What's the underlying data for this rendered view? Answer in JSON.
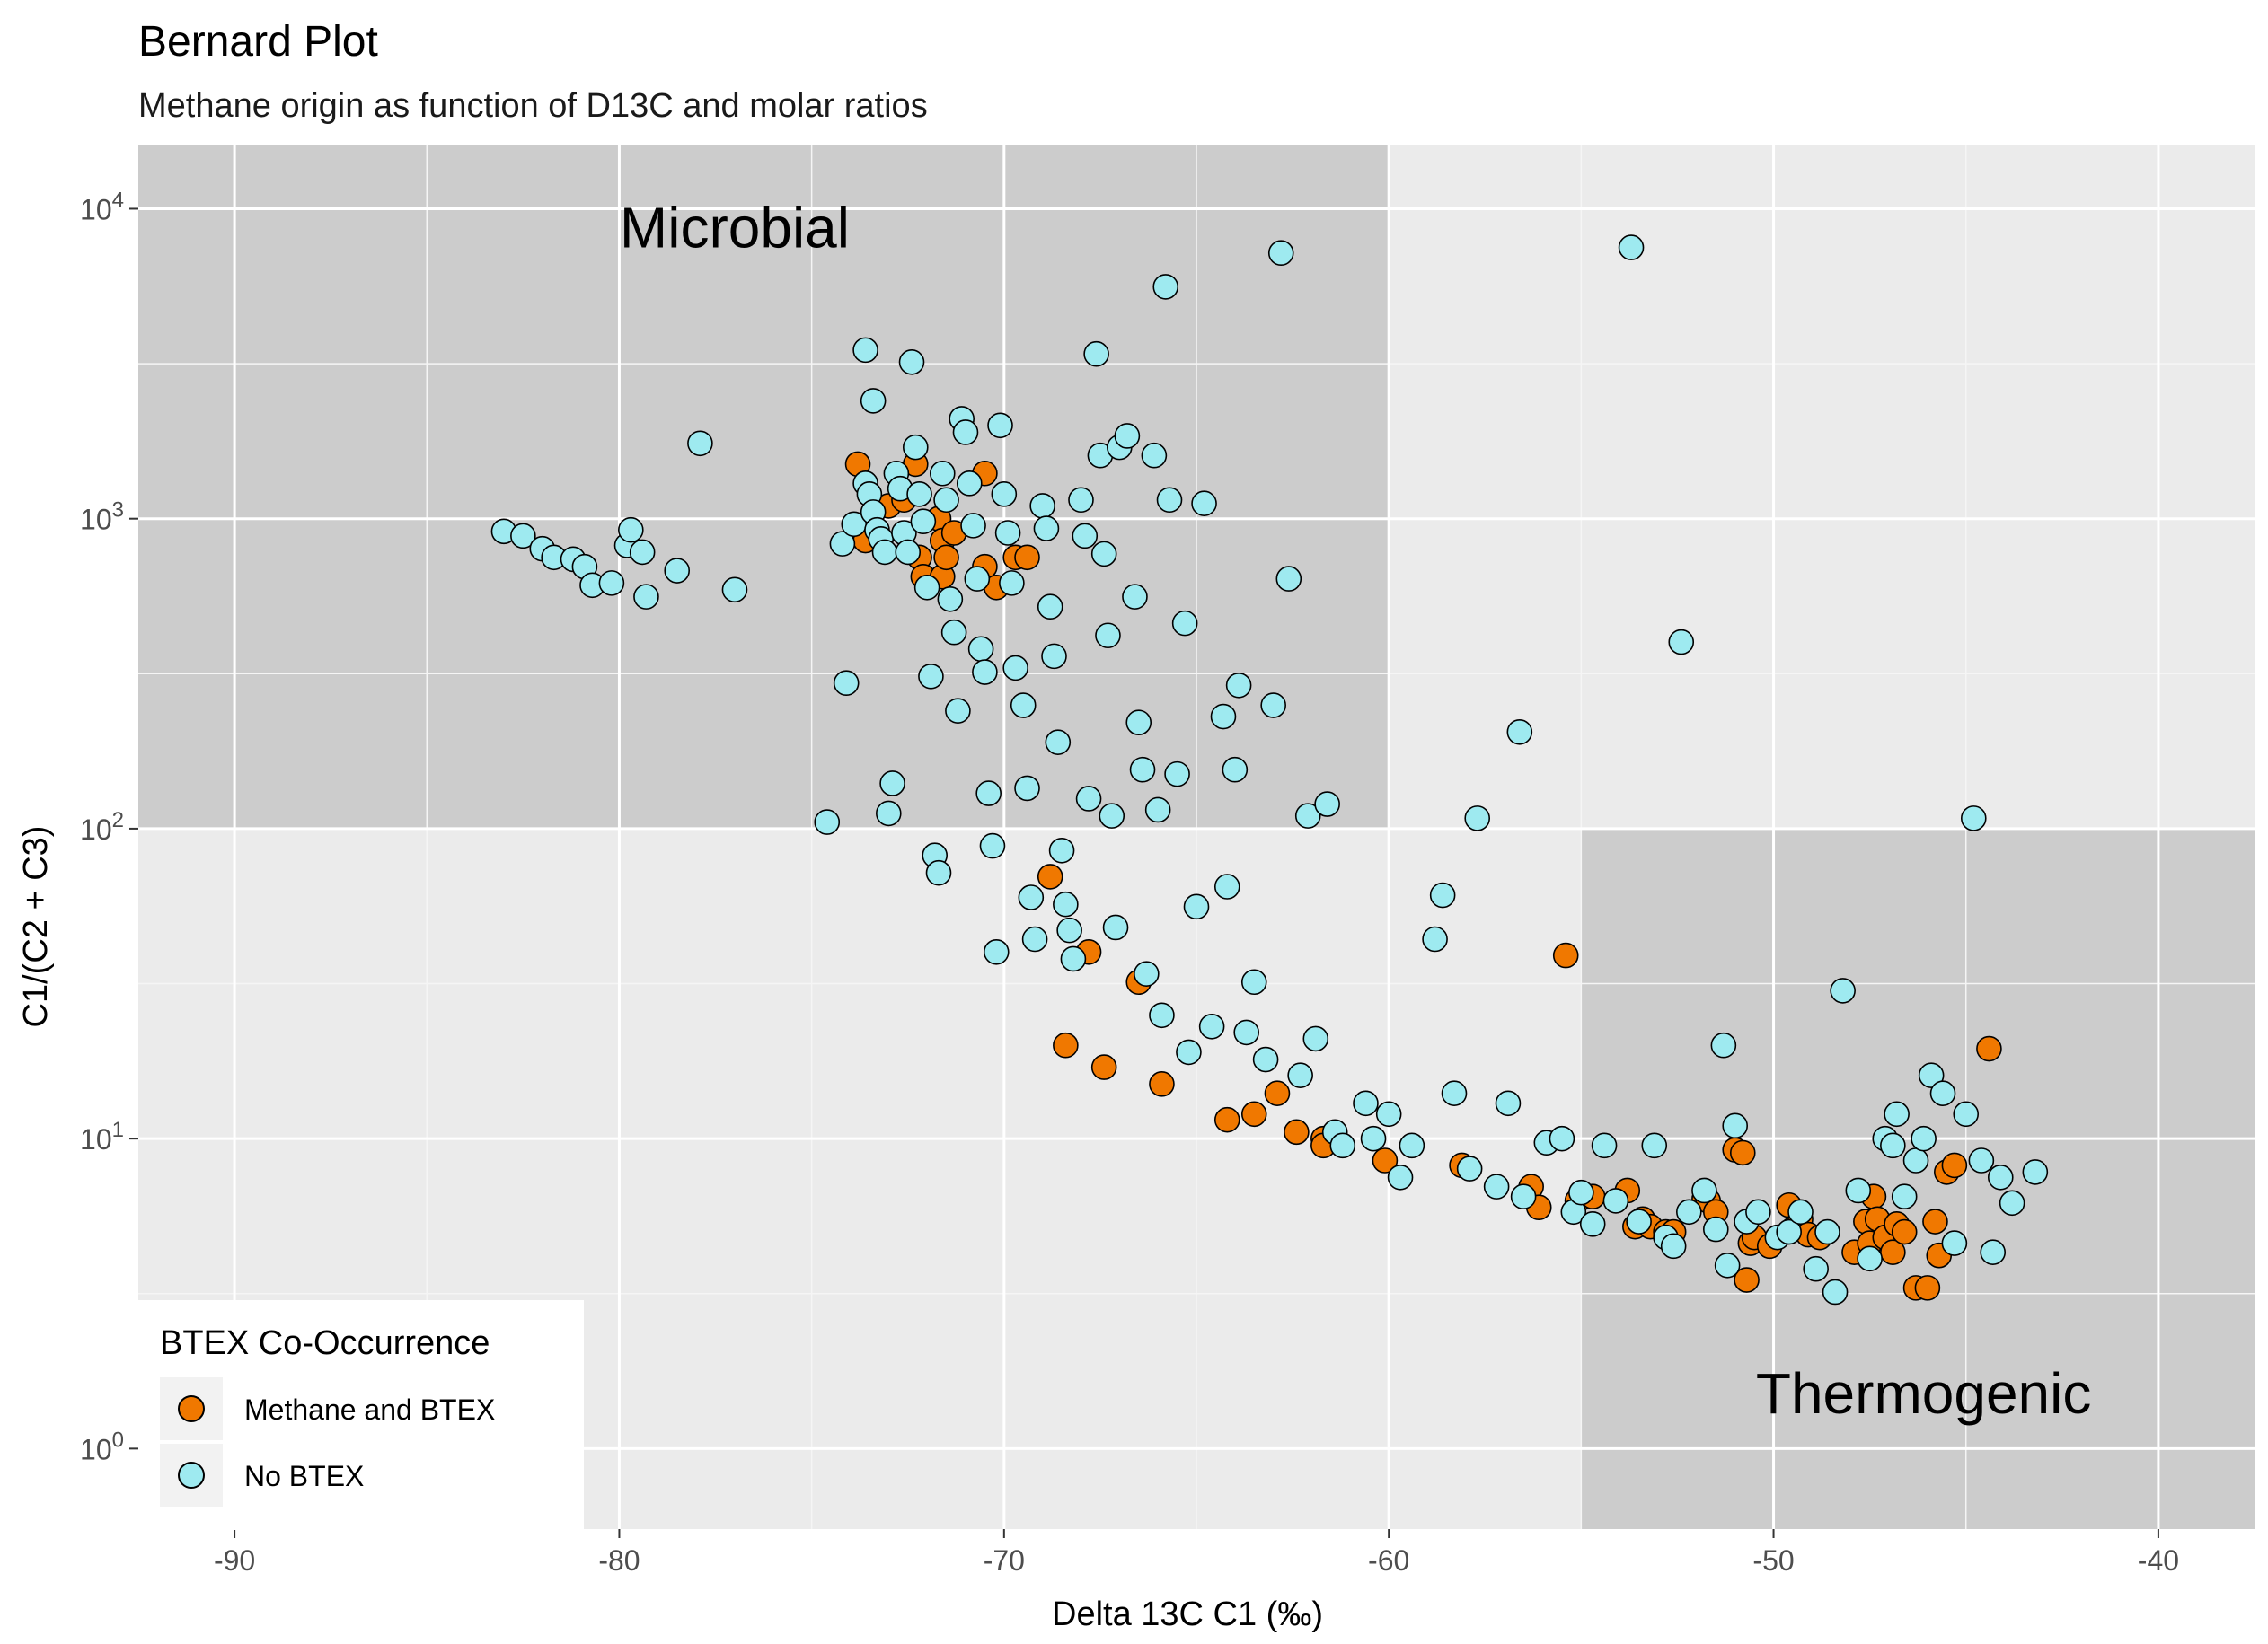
{
  "chart_data": {
    "type": "scatter",
    "title": "Bernard Plot",
    "subtitle": "Methane origin as function of D13C and molar ratios",
    "xlabel": "Delta 13C C1 (‰)",
    "ylabel": "C1/(C2 + C3)",
    "xlim": [
      -92.5,
      -37.5
    ],
    "ylim": [
      0.55,
      16000
    ],
    "y_scale": "log10",
    "x_ticks": [
      -90,
      -80,
      -70,
      -60,
      -50,
      -40
    ],
    "x_tick_labels": [
      "-90",
      "-80",
      "-70",
      "-60",
      "-50",
      "-40"
    ],
    "y_ticks": [
      1,
      10,
      100,
      1000,
      10000
    ],
    "y_tick_labels": [
      {
        "base": "10",
        "exp": "0"
      },
      {
        "base": "10",
        "exp": "1"
      },
      {
        "base": "10",
        "exp": "2"
      },
      {
        "base": "10",
        "exp": "3"
      },
      {
        "base": "10",
        "exp": "4"
      }
    ],
    "grid": true,
    "regions": [
      {
        "label": "Microbial",
        "x": [
          -92.5,
          -60
        ],
        "y": [
          100,
          16000
        ],
        "color": "#cccccc"
      },
      {
        "label": "Thermogenic",
        "x": [
          -55,
          -37.5
        ],
        "y": [
          0.55,
          100
        ],
        "color": "#cccccc"
      }
    ],
    "legend": {
      "title": "BTEX Co-Occurrence",
      "position": "bottom-left"
    },
    "series": [
      {
        "name": "Methane and BTEX",
        "color": "#f07800",
        "points": [
          [
            -73.8,
            1500
          ],
          [
            -73.7,
            950
          ],
          [
            -73.6,
            850
          ],
          [
            -73.0,
            1100
          ],
          [
            -72.6,
            1150
          ],
          [
            -72.3,
            1500
          ],
          [
            -72.2,
            750
          ],
          [
            -72.1,
            650
          ],
          [
            -71.7,
            1000
          ],
          [
            -71.6,
            850
          ],
          [
            -71.6,
            650
          ],
          [
            -71.3,
            900
          ],
          [
            -71.5,
            750
          ],
          [
            -70.5,
            1400
          ],
          [
            -70.5,
            700
          ],
          [
            -70.2,
            600
          ],
          [
            -69.7,
            750
          ],
          [
            -69.4,
            750
          ],
          [
            -68.8,
            70
          ],
          [
            -68.4,
            20
          ],
          [
            -67.8,
            40
          ],
          [
            -67.4,
            17
          ],
          [
            -66.5,
            32
          ],
          [
            -65.9,
            15
          ],
          [
            -64.2,
            11.5
          ],
          [
            -63.5,
            12
          ],
          [
            -62.9,
            14
          ],
          [
            -62.4,
            10.5
          ],
          [
            -61.7,
            10
          ],
          [
            -61.7,
            9.5
          ],
          [
            -60.1,
            8.5
          ],
          [
            -58.1,
            8.2
          ],
          [
            -56.3,
            7
          ],
          [
            -56.1,
            6
          ],
          [
            -55.4,
            39
          ],
          [
            -55.1,
            6.3
          ],
          [
            -54.7,
            6.5
          ],
          [
            -53.8,
            6.8
          ],
          [
            -53.6,
            5.2
          ],
          [
            -53.4,
            5.5
          ],
          [
            -53.2,
            5.2
          ],
          [
            -52.8,
            5.0
          ],
          [
            -52.6,
            5.0
          ],
          [
            -51.8,
            6.4
          ],
          [
            -51.7,
            6.3
          ],
          [
            -51.5,
            5.8
          ],
          [
            -51.0,
            9.2
          ],
          [
            -50.8,
            9.0
          ],
          [
            -50.7,
            3.5
          ],
          [
            -50.6,
            4.6
          ],
          [
            -50.5,
            4.8
          ],
          [
            -50.1,
            4.5
          ],
          [
            -49.6,
            6.1
          ],
          [
            -49.5,
            5.1
          ],
          [
            -49.3,
            5.5
          ],
          [
            -49.1,
            4.9
          ],
          [
            -48.8,
            4.8
          ],
          [
            -47.9,
            4.3
          ],
          [
            -47.6,
            5.4
          ],
          [
            -47.5,
            4.6
          ],
          [
            -47.4,
            6.5
          ],
          [
            -47.3,
            5.5
          ],
          [
            -47.1,
            4.8
          ],
          [
            -46.9,
            4.3
          ],
          [
            -46.8,
            5.3
          ],
          [
            -46.6,
            5.0
          ],
          [
            -46.3,
            3.3
          ],
          [
            -46.0,
            3.3
          ],
          [
            -45.8,
            5.4
          ],
          [
            -45.7,
            4.2
          ],
          [
            -45.5,
            7.8
          ],
          [
            -45.3,
            8.2
          ],
          [
            -44.4,
            19.5
          ]
        ]
      },
      {
        "name": "No BTEX",
        "color": "#9eeaf0",
        "points": [
          [
            -83.0,
            910
          ],
          [
            -82.5,
            880
          ],
          [
            -82.0,
            800
          ],
          [
            -81.7,
            750
          ],
          [
            -81.2,
            740
          ],
          [
            -80.9,
            700
          ],
          [
            -80.7,
            610
          ],
          [
            -80.2,
            620
          ],
          [
            -79.8,
            820
          ],
          [
            -79.7,
            920
          ],
          [
            -79.4,
            780
          ],
          [
            -79.3,
            560
          ],
          [
            -78.5,
            680
          ],
          [
            -77.9,
            1750
          ],
          [
            -77.0,
            590
          ],
          [
            -74.6,
            105
          ],
          [
            -74.1,
            295
          ],
          [
            -74.2,
            830
          ],
          [
            -73.9,
            960
          ],
          [
            -73.6,
            3500
          ],
          [
            -73.4,
            2400
          ],
          [
            -73.6,
            1300
          ],
          [
            -73.5,
            1200
          ],
          [
            -73.4,
            1050
          ],
          [
            -73.3,
            920
          ],
          [
            -73.2,
            860
          ],
          [
            -73.1,
            780
          ],
          [
            -73.0,
            112
          ],
          [
            -72.9,
            140
          ],
          [
            -72.8,
            1400
          ],
          [
            -72.7,
            1250
          ],
          [
            -72.6,
            900
          ],
          [
            -72.5,
            780
          ],
          [
            -72.4,
            3200
          ],
          [
            -72.3,
            1700
          ],
          [
            -72.2,
            1200
          ],
          [
            -72.1,
            980
          ],
          [
            -72.0,
            600
          ],
          [
            -71.9,
            310
          ],
          [
            -71.8,
            82
          ],
          [
            -71.7,
            72
          ],
          [
            -71.6,
            1400
          ],
          [
            -71.5,
            1150
          ],
          [
            -71.4,
            550
          ],
          [
            -71.3,
            430
          ],
          [
            -71.2,
            240
          ],
          [
            -71.1,
            2100
          ],
          [
            -71.0,
            1900
          ],
          [
            -70.9,
            1300
          ],
          [
            -70.8,
            950
          ],
          [
            -70.7,
            640
          ],
          [
            -70.6,
            380
          ],
          [
            -70.5,
            320
          ],
          [
            -70.4,
            130
          ],
          [
            -70.3,
            88
          ],
          [
            -70.2,
            40
          ],
          [
            -70.1,
            2000
          ],
          [
            -70.0,
            1200
          ],
          [
            -69.9,
            900
          ],
          [
            -69.8,
            620
          ],
          [
            -69.7,
            330
          ],
          [
            -69.5,
            250
          ],
          [
            -69.4,
            135
          ],
          [
            -69.3,
            60
          ],
          [
            -69.2,
            44
          ],
          [
            -69.0,
            1100
          ],
          [
            -68.9,
            930
          ],
          [
            -68.8,
            520
          ],
          [
            -68.7,
            360
          ],
          [
            -68.6,
            190
          ],
          [
            -68.5,
            85
          ],
          [
            -68.4,
            57
          ],
          [
            -68.3,
            47
          ],
          [
            -68.2,
            38
          ],
          [
            -68.0,
            1150
          ],
          [
            -67.9,
            880
          ],
          [
            -67.8,
            125
          ],
          [
            -67.6,
            3400
          ],
          [
            -67.5,
            1600
          ],
          [
            -67.4,
            770
          ],
          [
            -67.3,
            420
          ],
          [
            -67.2,
            110
          ],
          [
            -67.1,
            48
          ],
          [
            -67.0,
            1700
          ],
          [
            -66.8,
            1850
          ],
          [
            -66.6,
            560
          ],
          [
            -66.5,
            220
          ],
          [
            -66.4,
            155
          ],
          [
            -66.3,
            34
          ],
          [
            -66.1,
            1600
          ],
          [
            -66.0,
            115
          ],
          [
            -65.9,
            25
          ],
          [
            -65.8,
            5600
          ],
          [
            -65.7,
            1150
          ],
          [
            -65.5,
            150
          ],
          [
            -65.3,
            460
          ],
          [
            -65.2,
            19
          ],
          [
            -65.0,
            56
          ],
          [
            -64.8,
            1120
          ],
          [
            -64.6,
            23
          ],
          [
            -64.3,
            230
          ],
          [
            -64.2,
            65
          ],
          [
            -64.0,
            155
          ],
          [
            -63.9,
            290
          ],
          [
            -63.7,
            22
          ],
          [
            -63.5,
            32
          ],
          [
            -63.2,
            18
          ],
          [
            -63.0,
            250
          ],
          [
            -62.8,
            7200
          ],
          [
            -62.6,
            640
          ],
          [
            -62.3,
            16
          ],
          [
            -62.1,
            110
          ],
          [
            -61.9,
            21
          ],
          [
            -61.6,
            120
          ],
          [
            -61.4,
            10.5
          ],
          [
            -61.2,
            9.5
          ],
          [
            -60.6,
            13
          ],
          [
            -60.4,
            10
          ],
          [
            -60.0,
            12
          ],
          [
            -59.7,
            7.5
          ],
          [
            -59.4,
            9.5
          ],
          [
            -58.8,
            44
          ],
          [
            -58.6,
            61
          ],
          [
            -58.3,
            14
          ],
          [
            -57.9,
            8
          ],
          [
            -57.7,
            108
          ],
          [
            -57.2,
            7
          ],
          [
            -56.9,
            13
          ],
          [
            -56.6,
            205
          ],
          [
            -56.5,
            6.5
          ],
          [
            -55.9,
            9.7
          ],
          [
            -55.5,
            10
          ],
          [
            -55.2,
            5.8
          ],
          [
            -55.0,
            6.7
          ],
          [
            -54.7,
            5.3
          ],
          [
            -54.4,
            9.5
          ],
          [
            -54.1,
            6.3
          ],
          [
            -53.7,
            7500
          ],
          [
            -53.5,
            5.4
          ],
          [
            -53.1,
            9.5
          ],
          [
            -52.8,
            4.8
          ],
          [
            -52.6,
            4.5
          ],
          [
            -52.4,
            400
          ],
          [
            -52.2,
            5.8
          ],
          [
            -51.8,
            6.8
          ],
          [
            -51.5,
            5.1
          ],
          [
            -51.3,
            20
          ],
          [
            -51.2,
            3.9
          ],
          [
            -51.0,
            11
          ],
          [
            -50.7,
            5.4
          ],
          [
            -50.4,
            5.8
          ],
          [
            -49.9,
            4.8
          ],
          [
            -49.6,
            5.0
          ],
          [
            -49.3,
            5.8
          ],
          [
            -48.9,
            3.8
          ],
          [
            -48.6,
            5.0
          ],
          [
            -48.4,
            3.2
          ],
          [
            -48.2,
            30
          ],
          [
            -47.8,
            6.8
          ],
          [
            -47.5,
            4.1
          ],
          [
            -47.1,
            10
          ],
          [
            -46.9,
            9.5
          ],
          [
            -46.8,
            12
          ],
          [
            -46.6,
            6.5
          ],
          [
            -46.3,
            8.5
          ],
          [
            -46.1,
            10
          ],
          [
            -45.9,
            16
          ],
          [
            -45.6,
            14
          ],
          [
            -45.3,
            4.6
          ],
          [
            -45.0,
            12
          ],
          [
            -44.8,
            108
          ],
          [
            -44.6,
            8.5
          ],
          [
            -44.3,
            4.3
          ],
          [
            -44.1,
            7.5
          ],
          [
            -43.8,
            6.2
          ],
          [
            -43.2,
            7.8
          ]
        ]
      }
    ]
  }
}
